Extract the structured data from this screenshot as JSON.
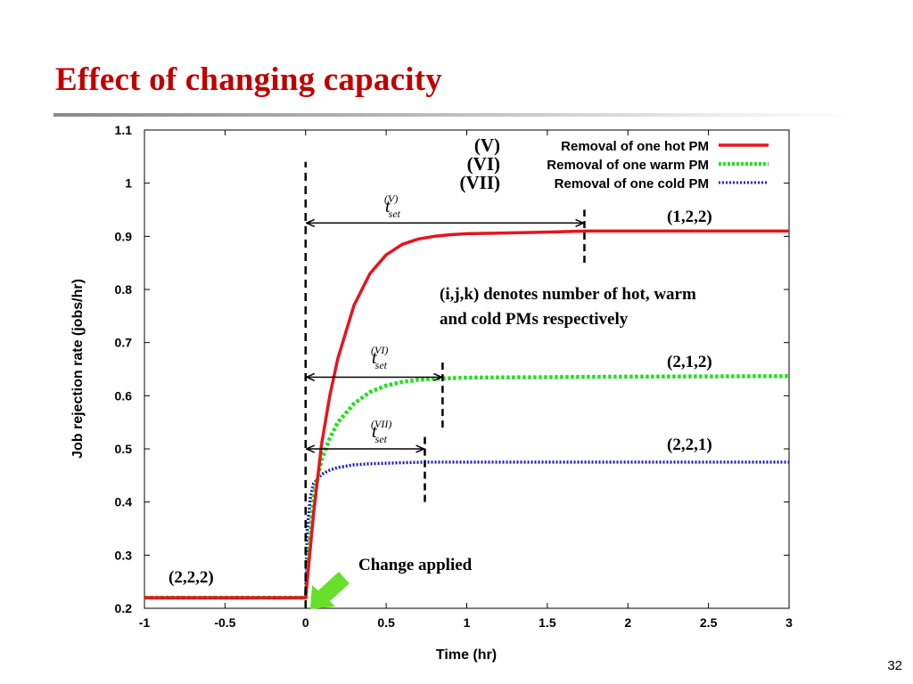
{
  "slide": {
    "title": "Effect of changing capacity",
    "page_number": "32"
  },
  "colors": {
    "title": "#c00000",
    "series_V": "#e8141c",
    "series_VI": "#22e01e",
    "series_VII": "#1c1ccc",
    "arrow": "#66e02a"
  },
  "chart_data": {
    "type": "line",
    "xlabel": "Time (hr)",
    "ylabel": "Job rejection rate (jobs/hr)",
    "xlim": [
      -1,
      3
    ],
    "ylim": [
      0.2,
      1.1
    ],
    "xticks": [
      "-1",
      "-0.5",
      "0",
      "0.5",
      "1",
      "1.5",
      "2",
      "2.5",
      "3"
    ],
    "yticks": [
      "0.2",
      "0.3",
      "0.4",
      "0.5",
      "0.6",
      "0.7",
      "0.8",
      "0.9",
      "1",
      "1.1"
    ],
    "grid": false,
    "legend_position": "top-right",
    "series": [
      {
        "name": "Removal of one hot PM",
        "label": "(V)",
        "style": "solid",
        "x": [
          -1,
          0,
          0.05,
          0.1,
          0.15,
          0.2,
          0.3,
          0.4,
          0.5,
          0.6,
          0.7,
          0.8,
          0.9,
          1.0,
          1.2,
          1.5,
          1.75,
          2.0,
          2.5,
          3.0
        ],
        "y": [
          0.22,
          0.22,
          0.38,
          0.51,
          0.6,
          0.67,
          0.77,
          0.83,
          0.865,
          0.885,
          0.895,
          0.9,
          0.903,
          0.905,
          0.906,
          0.908,
          0.91,
          0.91,
          0.91,
          0.91
        ]
      },
      {
        "name": "Removal of one warm PM",
        "label": "(VI)",
        "style": "dotted",
        "x": [
          -1,
          0,
          0.025,
          0.05,
          0.1,
          0.15,
          0.2,
          0.3,
          0.4,
          0.5,
          0.6,
          0.7,
          0.8,
          0.9,
          1.0,
          1.5,
          2.0,
          3.0
        ],
        "y": [
          0.22,
          0.22,
          0.33,
          0.41,
          0.48,
          0.52,
          0.55,
          0.585,
          0.607,
          0.619,
          0.626,
          0.63,
          0.632,
          0.633,
          0.634,
          0.635,
          0.636,
          0.637
        ]
      },
      {
        "name": "Removal of one cold PM",
        "label": "(VII)",
        "style": "dotted",
        "x": [
          -1,
          0,
          0.01,
          0.03,
          0.05,
          0.1,
          0.15,
          0.2,
          0.3,
          0.4,
          0.5,
          0.6,
          0.75,
          1.0,
          1.5,
          2.0,
          3.0
        ],
        "y": [
          0.22,
          0.22,
          0.35,
          0.41,
          0.435,
          0.452,
          0.46,
          0.465,
          0.47,
          0.472,
          0.473,
          0.474,
          0.475,
          0.475,
          0.475,
          0.475,
          0.475
        ]
      }
    ],
    "annotations": {
      "state_initial": "(2,2,2)",
      "state_V": "(1,2,2)",
      "state_VI": "(2,1,2)",
      "state_VII": "(2,2,1)",
      "note_line1": "(i,j,k) denotes number of hot, warm",
      "note_line2": "and cold PMs respectively",
      "change_label": "Change applied",
      "tset_symbol": "t",
      "tset_sub": "set",
      "tset_V_sup": "(V)",
      "tset_VI_sup": "(VI)",
      "tset_VII_sup": "(VII)",
      "change_time": 0,
      "settle_times": {
        "V": 1.73,
        "VI": 0.85,
        "VII": 0.74
      },
      "settle_levels": {
        "V": 0.925,
        "VI": 0.635,
        "VII": 0.5
      },
      "marker_ranges": {
        "V": [
          0.85,
          0.95
        ],
        "VI": [
          0.54,
          0.67
        ],
        "VII": [
          0.4,
          0.53
        ]
      },
      "change_line_range": [
        0.2,
        1.04
      ]
    }
  }
}
